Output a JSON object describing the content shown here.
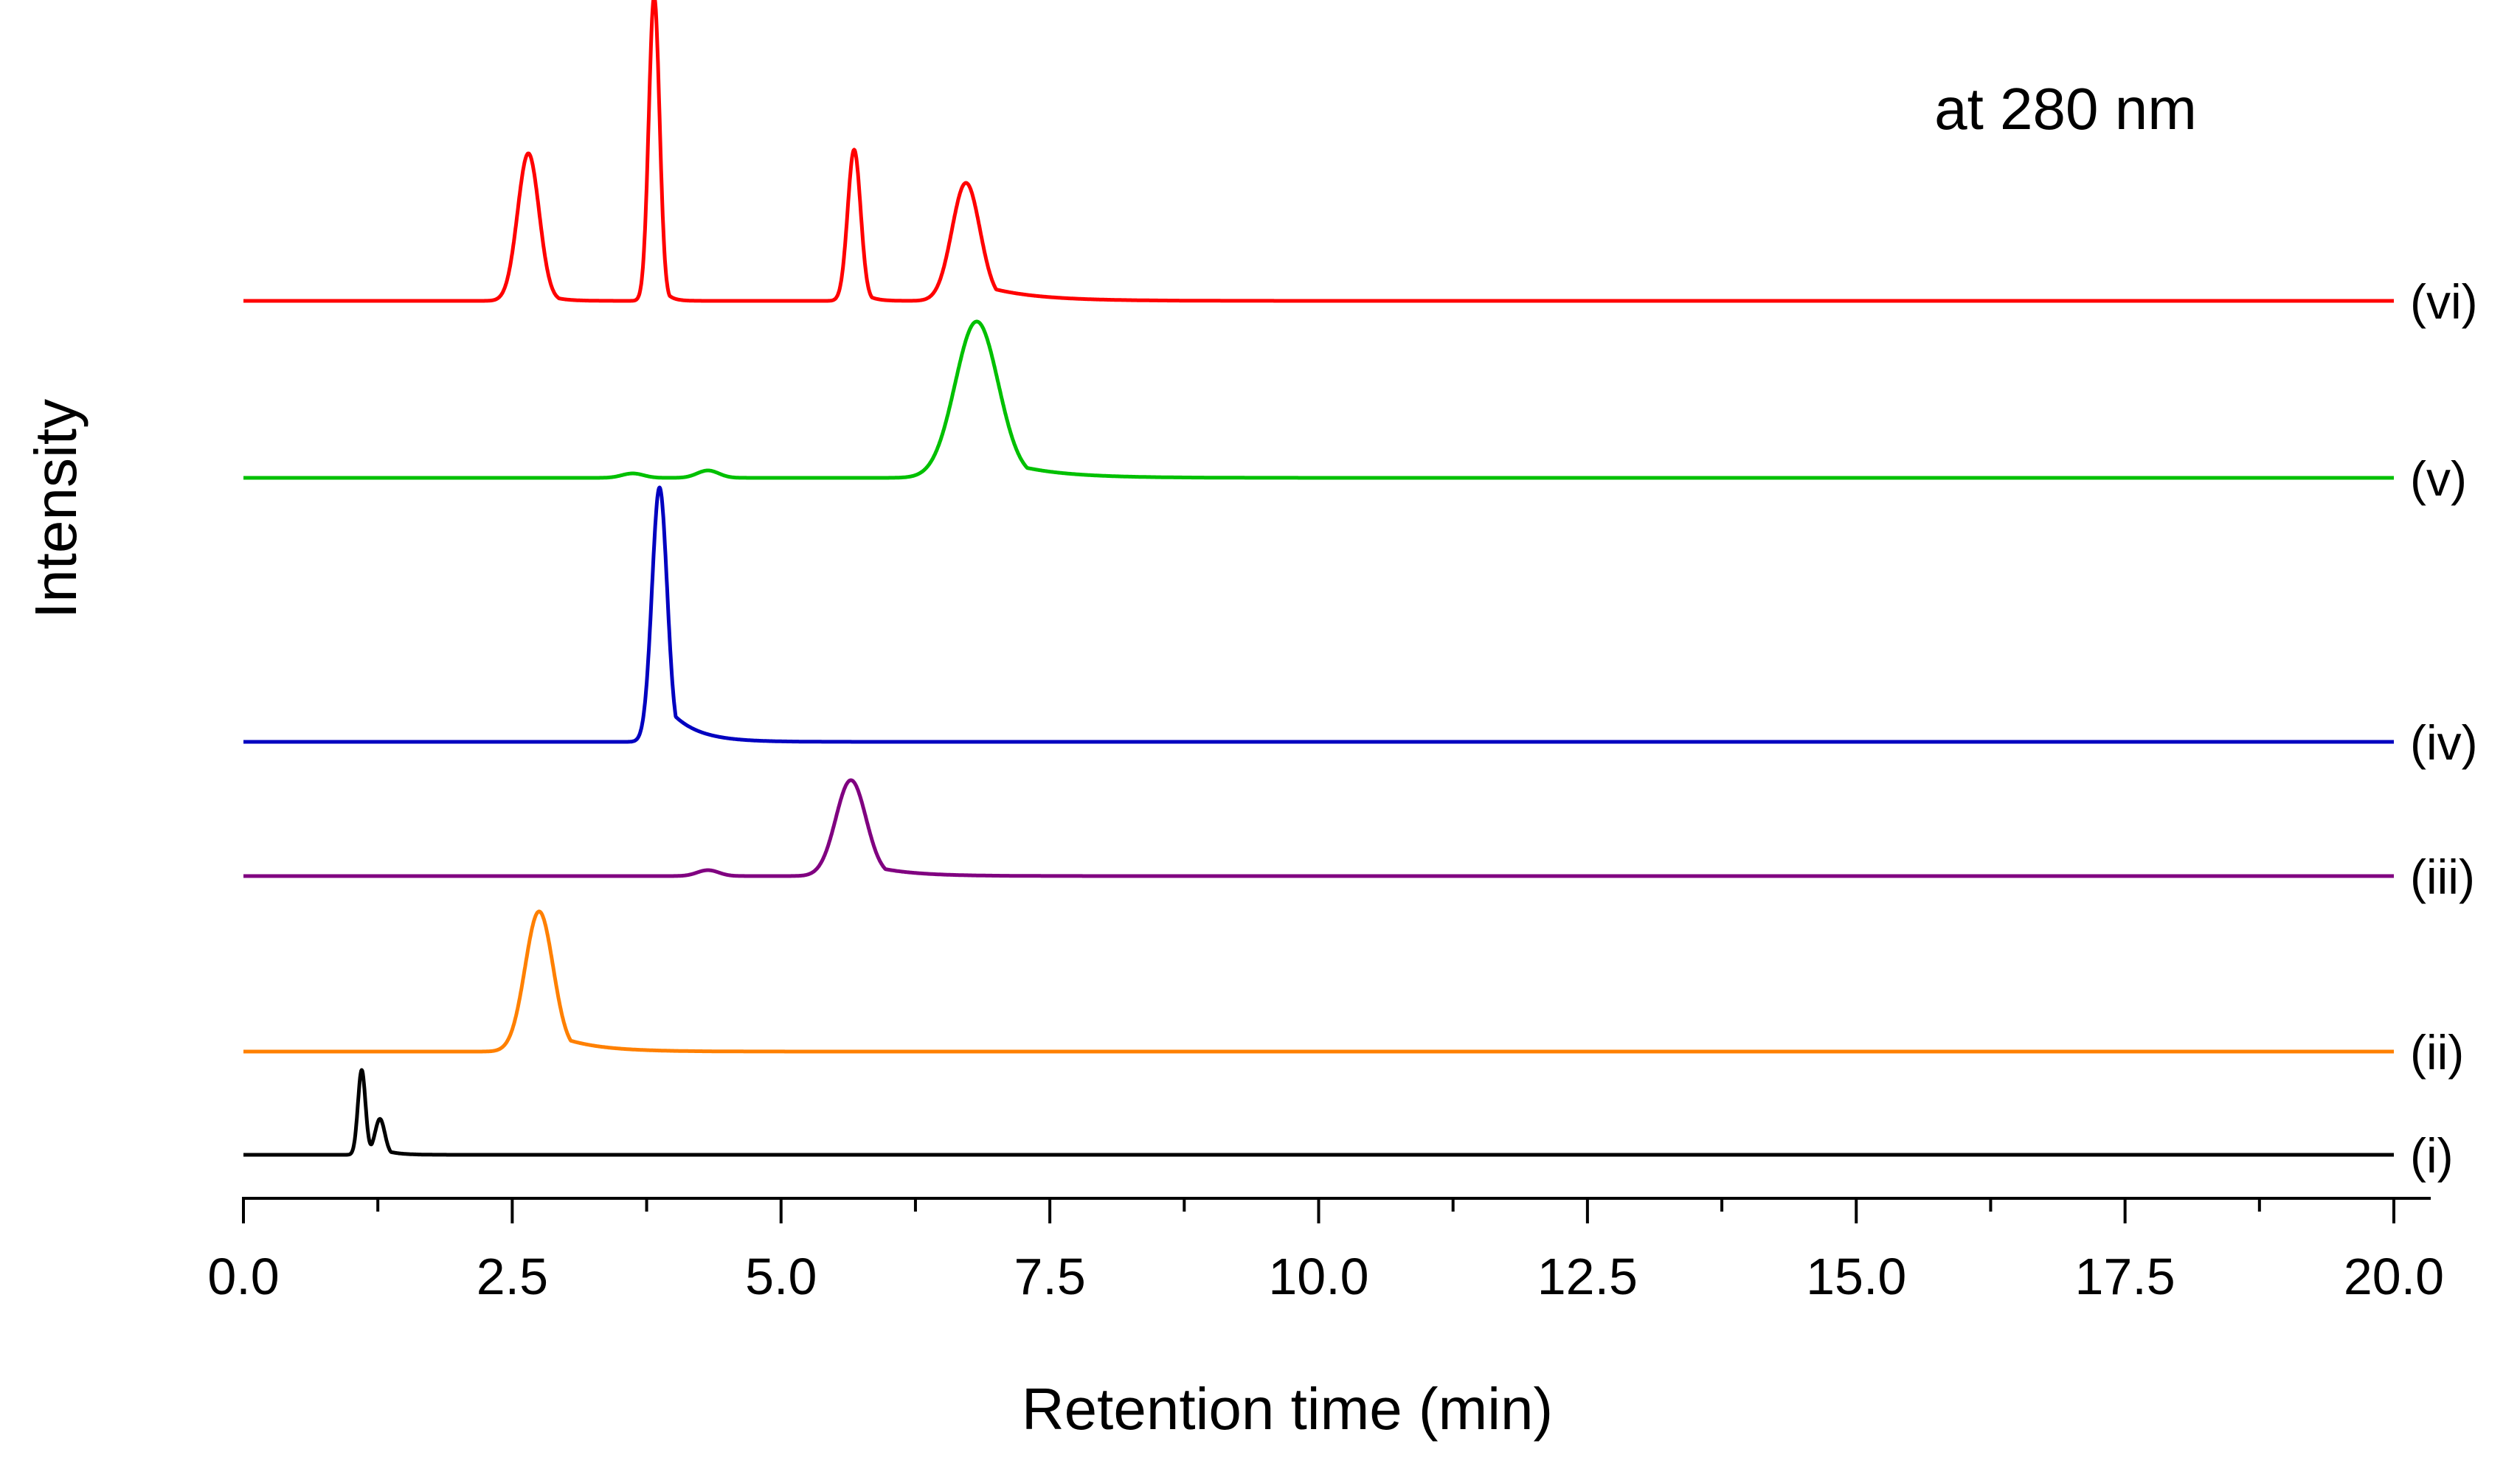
{
  "chart_data": {
    "type": "line",
    "title": "at 280 nm",
    "xlabel": "Retention time (min)",
    "ylabel": "Intensity",
    "xlim": [
      0,
      20
    ],
    "x_ticks": [
      "0.0",
      "2.5",
      "5.0",
      "7.5",
      "10.0",
      "12.5",
      "15.0",
      "17.5",
      "20.0"
    ],
    "x_tick_values": [
      0,
      2.5,
      5,
      7.5,
      10,
      12.5,
      15,
      17.5,
      20
    ],
    "grid": false,
    "legend": "inline labels at right end of each trace",
    "series": [
      {
        "name": "(i)",
        "color": "#000000",
        "offset": 0.0,
        "peaks": [
          {
            "rt": 1.1,
            "height": 0.115,
            "width": 0.035,
            "tail": 0.05
          },
          {
            "rt": 1.27,
            "height": 0.048,
            "width": 0.045,
            "tail": 0.12
          }
        ]
      },
      {
        "name": "(ii)",
        "color": "#ff8000",
        "offset": 0.14,
        "peaks": [
          {
            "rt": 2.75,
            "height": 0.19,
            "width": 0.13,
            "tail": 0.35
          }
        ]
      },
      {
        "name": "(iii)",
        "color": "#800080",
        "offset": 0.378,
        "peaks": [
          {
            "rt": 4.32,
            "height": 0.008,
            "width": 0.1,
            "tail": 0.1
          },
          {
            "rt": 5.65,
            "height": 0.13,
            "width": 0.14,
            "tail": 0.35
          }
        ]
      },
      {
        "name": "(iv)",
        "color": "#0000c0",
        "offset": 0.56,
        "peaks": [
          {
            "rt": 3.87,
            "height": 0.345,
            "width": 0.07,
            "tail": 0.25
          }
        ]
      },
      {
        "name": "(v)",
        "color": "#00c000",
        "offset": 0.918,
        "peaks": [
          {
            "rt": 3.62,
            "height": 0.006,
            "width": 0.1,
            "tail": 0.1
          },
          {
            "rt": 4.32,
            "height": 0.01,
            "width": 0.1,
            "tail": 0.1
          },
          {
            "rt": 6.82,
            "height": 0.212,
            "width": 0.2,
            "tail": 0.45
          }
        ]
      },
      {
        "name": "(vi)",
        "color": "#ff0000",
        "offset": 1.158,
        "peaks": [
          {
            "rt": 2.65,
            "height": 0.2,
            "width": 0.1,
            "tail": 0.12
          },
          {
            "rt": 3.82,
            "height": 0.413,
            "width": 0.05,
            "tail": 0.06
          },
          {
            "rt": 5.68,
            "height": 0.205,
            "width": 0.06,
            "tail": 0.08
          },
          {
            "rt": 6.72,
            "height": 0.16,
            "width": 0.13,
            "tail": 0.45
          }
        ]
      }
    ]
  }
}
